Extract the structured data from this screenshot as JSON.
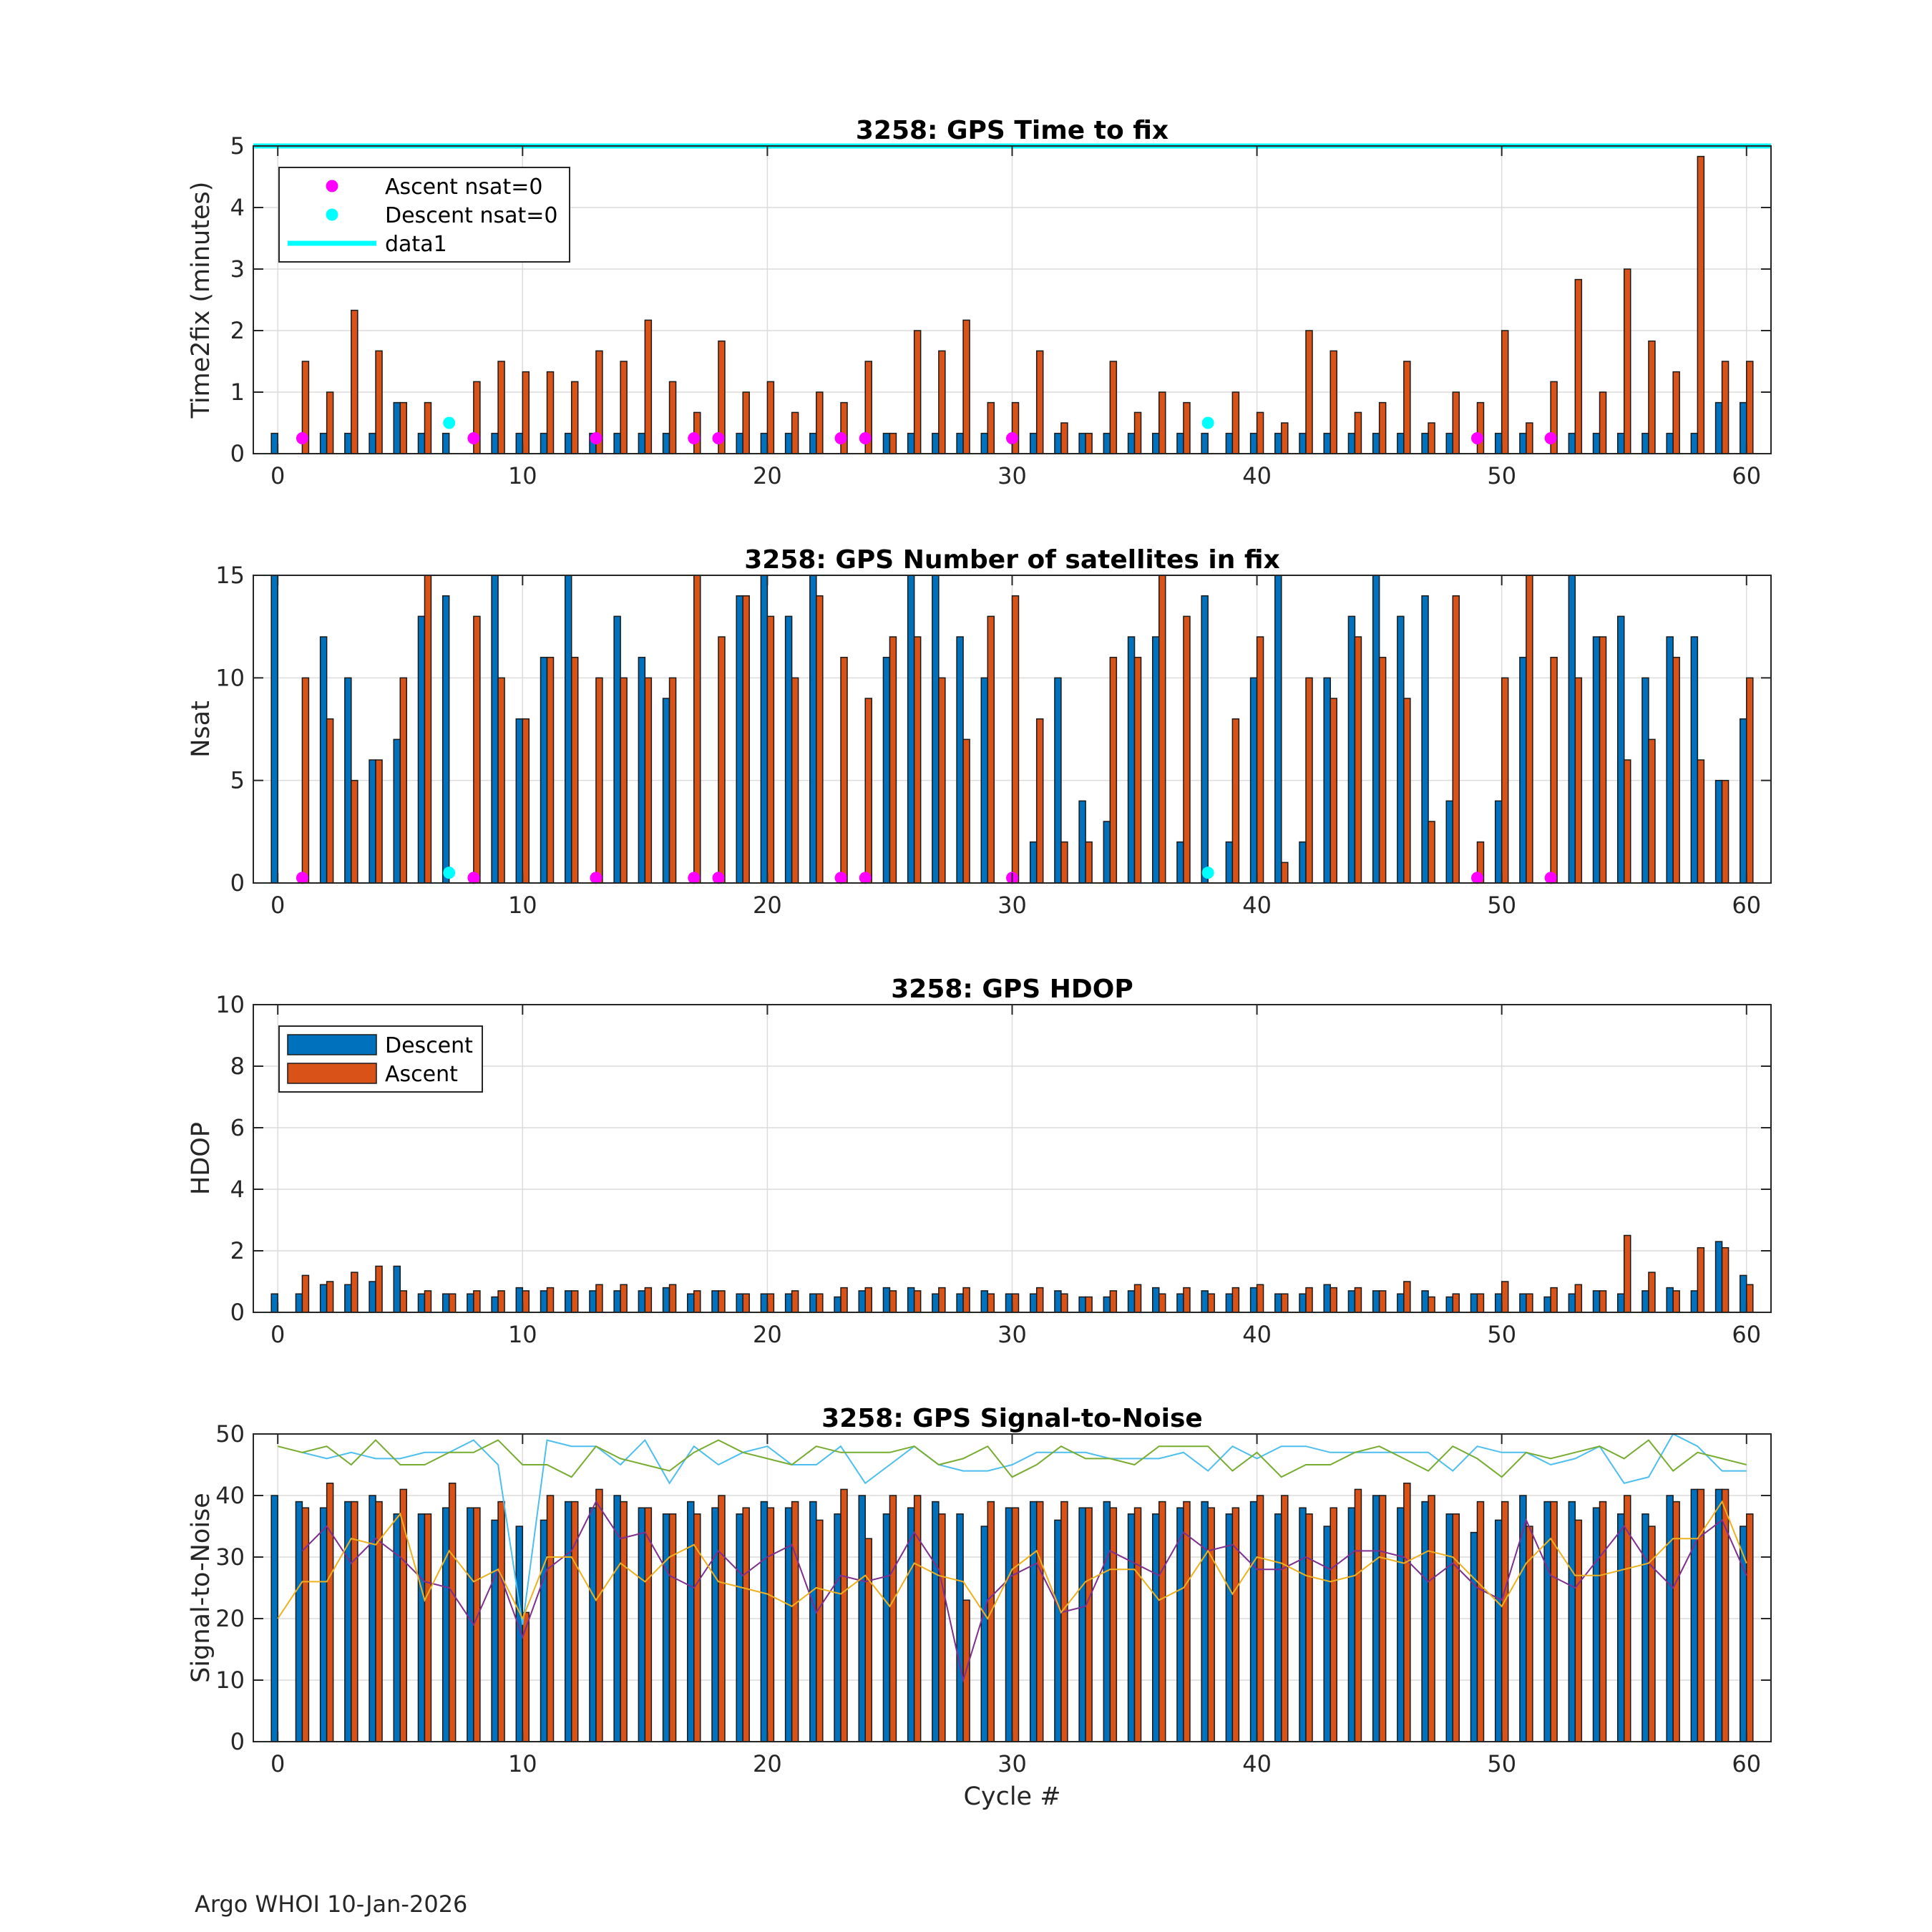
{
  "footer": "Argo WHOI 10-Jan-2026",
  "colors": {
    "descent": "#0072BD",
    "ascent": "#D95319",
    "ascent_nsat0": "#FF00FF",
    "descent_nsat0": "#00FFFF",
    "snr_line1": "#4DBEEE",
    "snr_line2": "#77AC30",
    "snr_line3": "#7E2F8E",
    "snr_line4": "#EDB120"
  },
  "chart_data": [
    {
      "type": "bar",
      "title": "3258: GPS Time to fix",
      "xlabel": "",
      "ylabel": "Time2fix (minutes)",
      "xlim": [
        -1,
        61
      ],
      "ylim": [
        0,
        5
      ],
      "xticks": [
        0,
        10,
        20,
        30,
        40,
        50,
        60
      ],
      "yticks": [
        0,
        1,
        2,
        3,
        4,
        5
      ],
      "grid": true,
      "legend": {
        "position": "top-left",
        "entries": [
          "Ascent nsat=0",
          "Descent nsat=0",
          "data1"
        ]
      },
      "reference_line": {
        "name": "data1",
        "y": 5
      },
      "x": [
        0,
        1,
        2,
        3,
        4,
        5,
        6,
        7,
        8,
        9,
        10,
        11,
        12,
        13,
        14,
        15,
        16,
        17,
        18,
        19,
        20,
        21,
        22,
        23,
        24,
        25,
        26,
        27,
        28,
        29,
        30,
        31,
        32,
        33,
        34,
        35,
        36,
        37,
        38,
        39,
        40,
        41,
        42,
        43,
        44,
        45,
        46,
        47,
        48,
        49,
        50,
        51,
        52,
        53,
        54,
        55,
        56,
        57,
        58,
        59,
        60
      ],
      "series": [
        {
          "name": "Descent",
          "values": [
            0.33,
            null,
            0.33,
            0.33,
            0.33,
            0.83,
            0.33,
            0.33,
            null,
            0.33,
            0.33,
            0.33,
            0.33,
            0.33,
            0.33,
            0.33,
            0.33,
            null,
            null,
            0.33,
            0.33,
            0.33,
            0.33,
            null,
            null,
            0.33,
            0.33,
            0.33,
            0.33,
            0.33,
            null,
            0.33,
            0.33,
            0.33,
            0.33,
            0.33,
            0.33,
            0.33,
            0.33,
            0.33,
            0.33,
            0.33,
            0.33,
            0.33,
            0.33,
            0.33,
            0.33,
            0.33,
            0.33,
            null,
            0.33,
            0.33,
            null,
            0.33,
            0.33,
            0.33,
            0.33,
            0.33,
            0.33,
            0.83,
            0.83
          ]
        },
        {
          "name": "Ascent",
          "values": [
            null,
            1.5,
            1.0,
            2.33,
            1.67,
            0.83,
            0.83,
            null,
            1.17,
            1.5,
            1.33,
            1.33,
            1.17,
            1.67,
            1.5,
            2.17,
            1.17,
            0.67,
            1.83,
            1.0,
            1.17,
            0.67,
            1.0,
            0.83,
            1.5,
            0.33,
            2.0,
            1.67,
            2.17,
            0.83,
            0.83,
            1.67,
            0.5,
            0.33,
            1.5,
            0.67,
            1.0,
            0.83,
            null,
            1.0,
            0.67,
            0.5,
            2.0,
            1.67,
            0.67,
            0.83,
            1.5,
            0.5,
            1.0,
            0.83,
            2.0,
            0.5,
            1.17,
            2.83,
            1.0,
            3.0,
            1.83,
            1.33,
            4.83,
            1.5,
            1.5
          ]
        }
      ],
      "markers": [
        {
          "name": "Ascent nsat=0",
          "x": [
            1,
            8,
            13,
            17,
            18,
            23,
            24,
            30,
            49,
            52
          ],
          "y": 0.25
        },
        {
          "name": "Descent nsat=0",
          "x": [
            7,
            38
          ],
          "y": 0.5
        }
      ]
    },
    {
      "type": "bar",
      "title": "3258: GPS Number of satellites in fix",
      "xlabel": "",
      "ylabel": "Nsat",
      "xlim": [
        -1,
        61
      ],
      "ylim": [
        0,
        15
      ],
      "xticks": [
        0,
        10,
        20,
        30,
        40,
        50,
        60
      ],
      "yticks": [
        0,
        5,
        10,
        15
      ],
      "grid": true,
      "x": [
        0,
        1,
        2,
        3,
        4,
        5,
        6,
        7,
        8,
        9,
        10,
        11,
        12,
        13,
        14,
        15,
        16,
        17,
        18,
        19,
        20,
        21,
        22,
        23,
        24,
        25,
        26,
        27,
        28,
        29,
        30,
        31,
        32,
        33,
        34,
        35,
        36,
        37,
        38,
        39,
        40,
        41,
        42,
        43,
        44,
        45,
        46,
        47,
        48,
        49,
        50,
        51,
        52,
        53,
        54,
        55,
        56,
        57,
        58,
        59,
        60
      ],
      "series": [
        {
          "name": "Descent",
          "values": [
            15,
            null,
            12,
            10,
            6,
            7,
            13,
            14,
            null,
            15,
            8,
            11,
            15,
            null,
            13,
            11,
            9,
            null,
            null,
            14,
            15,
            13,
            15,
            null,
            null,
            11,
            15,
            15,
            12,
            10,
            null,
            2,
            10,
            4,
            3,
            12,
            12,
            2,
            14,
            2,
            10,
            15,
            2,
            10,
            13,
            15,
            13,
            14,
            4,
            null,
            4,
            11,
            null,
            15,
            12,
            13,
            10,
            12,
            12,
            5,
            8
          ]
        },
        {
          "name": "Ascent",
          "values": [
            null,
            10,
            8,
            5,
            6,
            10,
            15,
            null,
            13,
            10,
            8,
            11,
            11,
            10,
            10,
            10,
            10,
            15,
            12,
            14,
            13,
            10,
            14,
            11,
            9,
            12,
            12,
            10,
            7,
            13,
            14,
            8,
            2,
            2,
            11,
            11,
            15,
            13,
            null,
            8,
            12,
            1,
            10,
            9,
            12,
            11,
            9,
            3,
            14,
            2,
            10,
            15,
            11,
            10,
            12,
            6,
            7,
            11,
            6,
            5,
            10
          ]
        }
      ],
      "markers": [
        {
          "name": "Ascent nsat=0",
          "x": [
            1,
            8,
            13,
            17,
            18,
            23,
            24,
            30,
            49,
            52
          ],
          "y": 0.25
        },
        {
          "name": "Descent nsat=0",
          "x": [
            7,
            38
          ],
          "y": 0.5
        }
      ]
    },
    {
      "type": "bar",
      "title": "3258: GPS HDOP",
      "xlabel": "",
      "ylabel": "HDOP",
      "xlim": [
        -1,
        61
      ],
      "ylim": [
        0,
        10
      ],
      "xticks": [
        0,
        10,
        20,
        30,
        40,
        50,
        60
      ],
      "yticks": [
        0,
        2,
        4,
        6,
        8,
        10
      ],
      "grid": true,
      "legend": {
        "position": "top-left",
        "entries": [
          "Descent",
          "Ascent"
        ]
      },
      "x": [
        0,
        1,
        2,
        3,
        4,
        5,
        6,
        7,
        8,
        9,
        10,
        11,
        12,
        13,
        14,
        15,
        16,
        17,
        18,
        19,
        20,
        21,
        22,
        23,
        24,
        25,
        26,
        27,
        28,
        29,
        30,
        31,
        32,
        33,
        34,
        35,
        36,
        37,
        38,
        39,
        40,
        41,
        42,
        43,
        44,
        45,
        46,
        47,
        48,
        49,
        50,
        51,
        52,
        53,
        54,
        55,
        56,
        57,
        58,
        59,
        60
      ],
      "series": [
        {
          "name": "Descent",
          "values": [
            0.6,
            0.6,
            0.9,
            0.9,
            1.0,
            1.5,
            0.6,
            0.6,
            0.6,
            0.5,
            0.8,
            0.7,
            0.7,
            0.7,
            0.7,
            0.7,
            0.8,
            0.6,
            0.7,
            0.6,
            0.6,
            0.6,
            0.6,
            0.5,
            0.7,
            0.8,
            0.8,
            0.6,
            0.6,
            0.7,
            0.6,
            0.6,
            0.7,
            0.5,
            0.5,
            0.7,
            0.8,
            0.6,
            0.7,
            0.6,
            0.8,
            0.6,
            0.6,
            0.9,
            0.7,
            0.7,
            0.6,
            0.7,
            0.5,
            0.6,
            0.6,
            0.6,
            0.5,
            0.6,
            0.7,
            0.6,
            0.7,
            0.8,
            0.7,
            2.3,
            1.2
          ]
        },
        {
          "name": "Ascent",
          "values": [
            null,
            1.2,
            1.0,
            1.3,
            1.5,
            0.7,
            0.7,
            0.6,
            0.7,
            0.7,
            0.7,
            0.8,
            0.7,
            0.9,
            0.9,
            0.8,
            0.9,
            0.7,
            0.7,
            0.6,
            0.6,
            0.7,
            0.6,
            0.8,
            0.8,
            0.7,
            0.7,
            0.8,
            0.8,
            0.6,
            0.6,
            0.8,
            0.6,
            0.5,
            0.7,
            0.9,
            0.6,
            0.8,
            0.6,
            0.8,
            0.9,
            0.6,
            0.8,
            0.8,
            0.8,
            0.7,
            1.0,
            0.5,
            0.6,
            0.6,
            1.0,
            0.6,
            0.8,
            0.9,
            0.7,
            2.5,
            1.3,
            0.7,
            2.1,
            2.1,
            0.9
          ]
        }
      ]
    },
    {
      "type": "bar",
      "title": "3258: GPS Signal-to-Noise",
      "xlabel": "Cycle #",
      "ylabel": "Signal-to-Noise",
      "xlim": [
        -1,
        61
      ],
      "ylim": [
        0,
        50
      ],
      "xticks": [
        0,
        10,
        20,
        30,
        40,
        50,
        60
      ],
      "yticks": [
        0,
        10,
        20,
        30,
        40,
        50
      ],
      "grid": true,
      "x": [
        0,
        1,
        2,
        3,
        4,
        5,
        6,
        7,
        8,
        9,
        10,
        11,
        12,
        13,
        14,
        15,
        16,
        17,
        18,
        19,
        20,
        21,
        22,
        23,
        24,
        25,
        26,
        27,
        28,
        29,
        30,
        31,
        32,
        33,
        34,
        35,
        36,
        37,
        38,
        39,
        40,
        41,
        42,
        43,
        44,
        45,
        46,
        47,
        48,
        49,
        50,
        51,
        52,
        53,
        54,
        55,
        56,
        57,
        58,
        59,
        60
      ],
      "series": [
        {
          "name": "Descent",
          "values": [
            40,
            39,
            38,
            39,
            40,
            37,
            37,
            38,
            38,
            36,
            35,
            36,
            39,
            38,
            40,
            38,
            37,
            39,
            38,
            37,
            39,
            38,
            39,
            37,
            40,
            37,
            38,
            39,
            37,
            35,
            38,
            39,
            36,
            38,
            39,
            37,
            37,
            38,
            39,
            37,
            39,
            37,
            38,
            35,
            38,
            40,
            38,
            39,
            37,
            34,
            36,
            40,
            39,
            39,
            38,
            37,
            37,
            40,
            41,
            41,
            35
          ]
        },
        {
          "name": "Ascent",
          "values": [
            null,
            38,
            42,
            39,
            39,
            41,
            37,
            42,
            38,
            39,
            21,
            40,
            39,
            41,
            39,
            38,
            37,
            37,
            40,
            38,
            38,
            39,
            36,
            41,
            33,
            40,
            40,
            37,
            23,
            39,
            38,
            39,
            39,
            38,
            38,
            38,
            39,
            39,
            38,
            38,
            40,
            40,
            37,
            38,
            41,
            40,
            42,
            40,
            37,
            39,
            39,
            35,
            39,
            36,
            39,
            40,
            35,
            39,
            41,
            41,
            37
          ]
        }
      ],
      "lines": [
        {
          "name": "line1",
          "values": [
            null,
            47,
            46,
            47,
            46,
            46,
            47,
            47,
            49,
            45,
            19,
            49,
            48,
            48,
            45,
            49,
            42,
            48,
            45,
            47,
            48,
            45,
            45,
            48,
            42,
            45,
            48,
            45,
            44,
            44,
            45,
            47,
            47,
            47,
            46,
            46,
            46,
            47,
            44,
            48,
            46,
            48,
            48,
            47,
            47,
            47,
            47,
            47,
            44,
            48,
            47,
            47,
            45,
            46,
            48,
            42,
            43,
            50,
            48,
            44,
            44
          ]
        },
        {
          "name": "line2",
          "values": [
            48,
            47,
            48,
            45,
            49,
            45,
            45,
            47,
            47,
            49,
            45,
            45,
            43,
            48,
            46,
            45,
            44,
            47,
            49,
            47,
            46,
            45,
            48,
            47,
            47,
            47,
            48,
            45,
            46,
            48,
            43,
            45,
            48,
            46,
            46,
            45,
            48,
            48,
            48,
            44,
            47,
            43,
            45,
            45,
            47,
            48,
            46,
            44,
            48,
            46,
            43,
            47,
            46,
            47,
            48,
            46,
            49,
            44,
            47,
            46,
            45
          ]
        },
        {
          "name": "line3",
          "values": [
            null,
            31,
            35,
            29,
            33,
            30,
            26,
            25,
            19,
            28,
            17,
            28,
            31,
            39,
            33,
            34,
            27,
            25,
            31,
            27,
            30,
            32,
            21,
            27,
            26,
            27,
            34,
            28,
            10,
            23,
            27,
            29,
            21,
            22,
            31,
            29,
            27,
            34,
            31,
            32,
            28,
            28,
            30,
            28,
            31,
            31,
            30,
            26,
            29,
            25,
            23,
            36,
            27,
            25,
            30,
            35,
            29,
            25,
            33,
            36,
            27
          ]
        },
        {
          "name": "line4",
          "values": [
            20,
            26,
            26,
            33,
            32,
            37,
            23,
            31,
            26,
            28,
            20,
            30,
            30,
            23,
            29,
            26,
            30,
            32,
            26,
            25,
            24,
            22,
            25,
            24,
            27,
            22,
            29,
            27,
            26,
            20,
            28,
            31,
            21,
            26,
            28,
            28,
            23,
            25,
            31,
            24,
            30,
            29,
            27,
            26,
            27,
            30,
            29,
            31,
            30,
            26,
            22,
            29,
            33,
            27,
            27,
            28,
            29,
            33,
            33,
            39,
            29
          ]
        }
      ]
    }
  ]
}
